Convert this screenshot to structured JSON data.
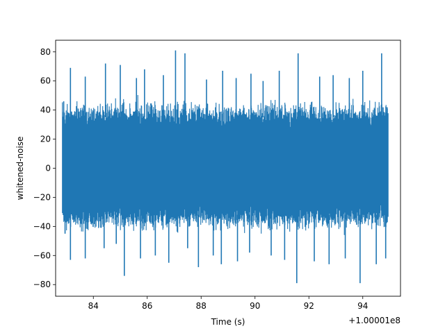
{
  "chart_data": {
    "type": "line",
    "xlabel": "Time (s)",
    "ylabel": "whitened-noise",
    "x_offset_label": "+1.00001e8",
    "xlim": [
      82.6,
      95.4
    ],
    "ylim": [
      -88,
      88
    ],
    "x_ticks": [
      84,
      86,
      88,
      90,
      92,
      94
    ],
    "y_ticks": [
      -80,
      -60,
      -40,
      -20,
      0,
      20,
      40,
      60,
      80
    ],
    "x_range": [
      82.85,
      94.95
    ],
    "typical_envelope": [
      -42,
      45
    ],
    "colors": {
      "line": "#1f77b4"
    },
    "series": [
      {
        "values": "whitened noise trace",
        "x": [
          82.9,
          83.15,
          83.7,
          84.45,
          85.0,
          85.6,
          85.9,
          86.6,
          87.05,
          87.4,
          88.2,
          88.8,
          89.3,
          89.85,
          90.3,
          90.9,
          91.6,
          92.4,
          92.9,
          93.5,
          94.0,
          94.7,
          94.9
        ],
        "y": [
          46,
          69,
          63,
          72,
          71,
          62,
          68,
          64,
          81,
          79,
          61,
          67,
          62,
          65,
          60,
          67,
          79,
          63,
          64,
          62,
          67,
          79,
          42
        ]
      },
      {
        "values": "negative extremes",
        "x": [
          82.95,
          83.15,
          83.7,
          84.4,
          84.85,
          85.15,
          85.75,
          86.3,
          86.8,
          87.5,
          87.9,
          88.45,
          88.75,
          89.35,
          89.8,
          90.6,
          91.1,
          91.55,
          92.2,
          92.75,
          93.35,
          93.9,
          94.5,
          94.85
        ],
        "y": [
          -45,
          -63,
          -62,
          -55,
          -52,
          -74,
          -62,
          -60,
          -65,
          -55,
          -68,
          -60,
          -66,
          -64,
          -58,
          -60,
          -63,
          -79,
          -64,
          -66,
          -62,
          -79,
          -66,
          -62
        ]
      }
    ]
  }
}
